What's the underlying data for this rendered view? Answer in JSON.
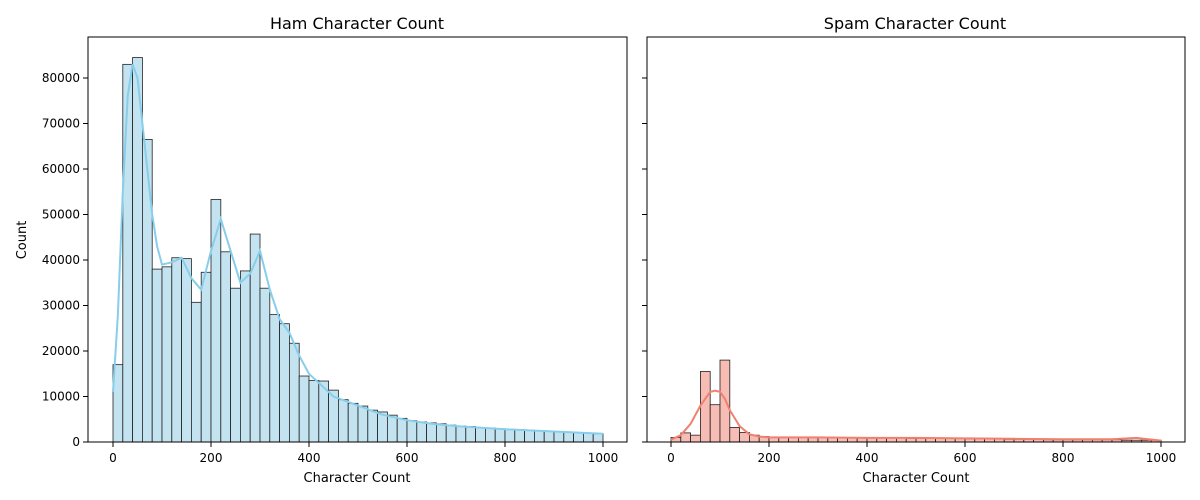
{
  "chart_data": [
    {
      "type": "bar",
      "title": "Ham Character Count",
      "xlabel": "Character Count",
      "ylabel": "Count",
      "xlim": [
        0,
        1000
      ],
      "ylim": [
        0,
        88000
      ],
      "bin_width": 20,
      "x_ticks": [
        0,
        200,
        400,
        600,
        800,
        1000
      ],
      "y_ticks": [
        0,
        10000,
        20000,
        30000,
        40000,
        50000,
        60000,
        70000,
        80000
      ],
      "colors": {
        "bar_fill": "#c3e3f1",
        "bar_edge": "#222222",
        "kde_line": "#87ceeb"
      },
      "values": [
        17000,
        83000,
        84500,
        66500,
        38000,
        38500,
        40500,
        40300,
        30700,
        37300,
        53300,
        41800,
        33800,
        37600,
        45700,
        33800,
        28000,
        26000,
        21700,
        14500,
        13500,
        13400,
        11400,
        9300,
        8500,
        7900,
        7000,
        6600,
        5900,
        5200,
        4700,
        4400,
        4200,
        4000,
        3700,
        3500,
        3400,
        3200,
        3100,
        2900,
        2800,
        2700,
        2600,
        2500,
        2400,
        2300,
        2200,
        2100,
        2000,
        1800
      ],
      "kde": {
        "x": [
          0,
          10,
          20,
          30,
          40,
          50,
          60,
          70,
          80,
          90,
          100,
          120,
          140,
          160,
          180,
          200,
          220,
          240,
          260,
          280,
          300,
          320,
          340,
          360,
          380,
          400,
          450,
          500,
          550,
          600,
          650,
          700,
          800,
          900,
          1000
        ],
        "y": [
          11000,
          28000,
          55000,
          76000,
          83000,
          80000,
          70000,
          60000,
          50000,
          43000,
          39000,
          39500,
          40500,
          36000,
          33500,
          42000,
          49000,
          42000,
          35000,
          37000,
          42000,
          33500,
          27000,
          24000,
          19000,
          15000,
          10000,
          8000,
          6000,
          4800,
          4000,
          3500,
          2800,
          2300,
          1800
        ]
      }
    },
    {
      "type": "bar",
      "title": "Spam Character Count",
      "xlabel": "Character Count",
      "ylabel": "",
      "xlim": [
        0,
        1000
      ],
      "ylim": [
        0,
        88000
      ],
      "bin_width": 20,
      "x_ticks": [
        0,
        200,
        400,
        600,
        800,
        1000
      ],
      "colors": {
        "bar_fill": "#f7bcb3",
        "bar_edge": "#222222",
        "kde_line": "#f08070"
      },
      "values": [
        1000,
        2000,
        1500,
        15500,
        8200,
        18000,
        3200,
        2100,
        1500,
        1200,
        1100,
        1100,
        1000,
        1000,
        1000,
        1000,
        1000,
        900,
        900,
        900,
        900,
        900,
        900,
        900,
        800,
        800,
        800,
        800,
        800,
        800,
        700,
        700,
        700,
        700,
        600,
        600,
        600,
        600,
        500,
        500,
        500,
        500,
        500,
        500,
        500,
        500,
        400,
        400,
        400,
        400
      ],
      "kde": {
        "x": [
          0,
          20,
          40,
          60,
          80,
          90,
          100,
          110,
          120,
          140,
          160,
          180,
          200,
          250,
          300,
          400,
          500,
          600,
          700,
          800,
          900,
          950,
          1000
        ],
        "y": [
          500,
          1500,
          4000,
          8000,
          11000,
          11300,
          11000,
          9500,
          7000,
          3500,
          1700,
          1200,
          1000,
          1000,
          1000,
          900,
          900,
          800,
          700,
          600,
          600,
          900,
          300
        ]
      }
    }
  ]
}
